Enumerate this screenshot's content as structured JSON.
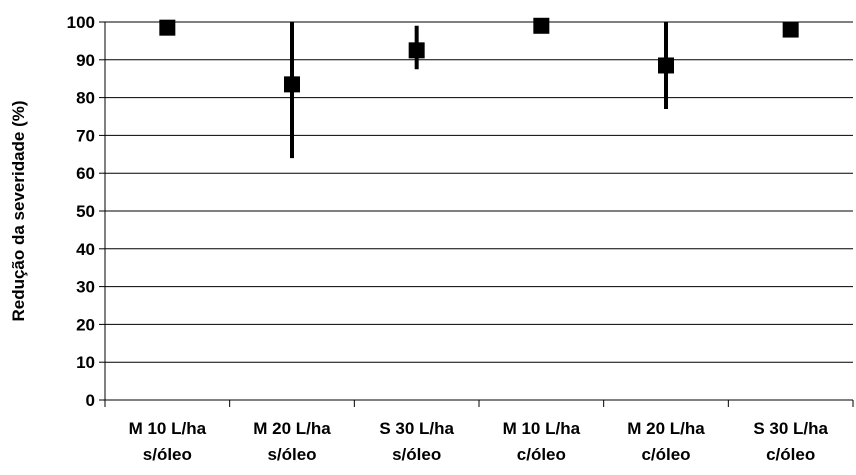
{
  "chart_data": {
    "type": "scatter",
    "title": "",
    "xlabel": "",
    "ylabel": "Redução da severidade (%)",
    "ylim": [
      0,
      100
    ],
    "yticks": [
      0,
      10,
      20,
      30,
      40,
      50,
      60,
      70,
      80,
      90,
      100
    ],
    "grid": "horizontal",
    "categories": [
      [
        "M 10 L/ha",
        "s/óleo"
      ],
      [
        "M 20 L/ha",
        "s/óleo"
      ],
      [
        "S 30 L/ha",
        "s/óleo"
      ],
      [
        "M 10 L/ha",
        "c/óleo"
      ],
      [
        "M 20 L/ha",
        "c/óleo"
      ],
      [
        "S 30 L/ha",
        "c/óleo"
      ]
    ],
    "series": [
      {
        "values": [
          98.5,
          83.5,
          92.5,
          99,
          88.5,
          98
        ],
        "error_low": [
          98.5,
          64,
          87.5,
          99,
          77,
          98
        ],
        "error_high": [
          98.5,
          100,
          99,
          99,
          100,
          98
        ],
        "marker": "square",
        "color": "#000000"
      }
    ]
  }
}
